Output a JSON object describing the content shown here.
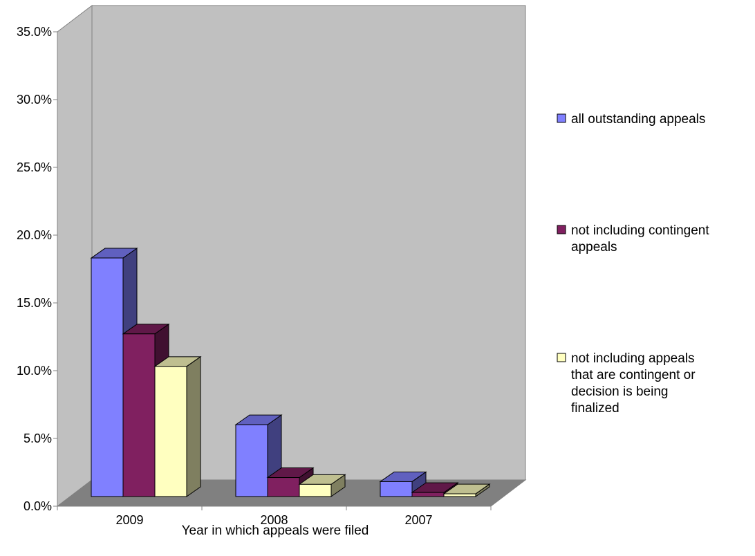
{
  "chart_data": {
    "type": "bar",
    "title": "",
    "xlabel": "Year in which appeals were filed",
    "ylabel": "",
    "categories": [
      "2009",
      "2008",
      "2007"
    ],
    "ylim": [
      0,
      35
    ],
    "yticks": [
      "0.0%",
      "5.0%",
      "10.0%",
      "15.0%",
      "20.0%",
      "25.0%",
      "30.0%",
      "35.0%"
    ],
    "grid": false,
    "legend_position": "right",
    "series": [
      {
        "name": "all outstanding appeals",
        "values": [
          17.6,
          5.3,
          1.1
        ],
        "color": "#8080FF",
        "side_color": "#40407F",
        "top_color": "#6060BF"
      },
      {
        "name": "not including contingent appeals",
        "values": [
          12.0,
          1.4,
          0.3
        ],
        "color": "#802060",
        "side_color": "#401030",
        "top_color": "#601848"
      },
      {
        "name": "not including appeals that are contingent or decision is being finalized",
        "values": [
          9.6,
          0.9,
          0.2
        ],
        "color": "#FFFFC0",
        "side_color": "#7F7F60",
        "top_color": "#BFBF90"
      }
    ]
  }
}
